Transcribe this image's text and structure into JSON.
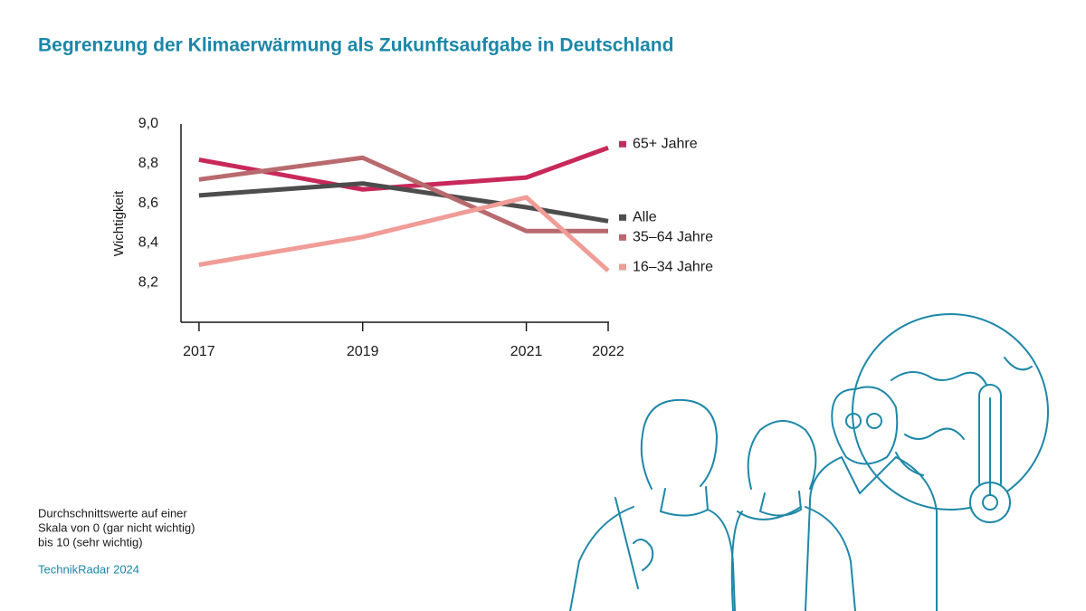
{
  "chart_data": {
    "type": "line",
    "title": "Begrenzung der Klimaerwärmung als Zukunftsaufgabe in Deutschland",
    "y_label": "Wichtigkeit",
    "x": [
      2017,
      2019,
      2021,
      2022
    ],
    "xlim": [
      2016.78,
      2022
    ],
    "xticks": [
      2017,
      2019,
      2021,
      2022
    ],
    "ylim": [
      8.0,
      9.0
    ],
    "yticks": [
      {
        "value": 8.2,
        "label": "8,2"
      },
      {
        "value": 8.4,
        "label": "8,4"
      },
      {
        "value": 8.6,
        "label": "8,6"
      },
      {
        "value": 8.8,
        "label": "8,8"
      },
      {
        "value": 9.0,
        "label": "9,0"
      }
    ],
    "grid": false,
    "series": [
      {
        "name": "65+ Jahre",
        "color": "#c8295a",
        "values": [
          8.82,
          8.67,
          8.73,
          8.88
        ]
      },
      {
        "name": "Alle",
        "color": "#4d4d4d",
        "values": [
          8.64,
          8.7,
          8.58,
          8.51
        ]
      },
      {
        "name": "35–64 Jahre",
        "color": "#b86a6e",
        "values": [
          8.72,
          8.83,
          8.46,
          8.46
        ]
      },
      {
        "name": "16–34 Jahre",
        "color": "#f09c97",
        "values": [
          8.29,
          8.43,
          8.63,
          8.26
        ]
      }
    ],
    "note": [
      "Durchschnittswerte auf einer",
      "Skala von 0 (gar nicht wichtig)",
      "bis 10 (sehr wichtig)"
    ],
    "source": "TechnikRadar 2024"
  }
}
